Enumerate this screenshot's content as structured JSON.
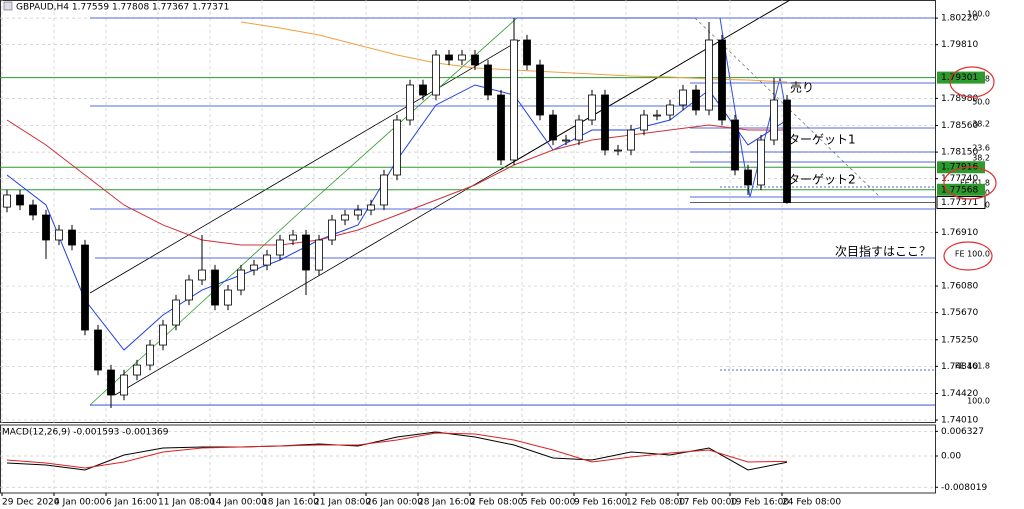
{
  "chart_data": [
    {
      "type": "candlestick",
      "title": "GBPAUD,H4  1.77559 1.77808 1.77367 1.77371",
      "categories": [
        "29 Dec 2020",
        null,
        null,
        null,
        "4 Jan 00:00",
        null,
        null,
        null,
        "6 Jan 16:00",
        null,
        null,
        null,
        "11 Jan 08:00",
        null,
        null,
        null,
        "14 Jan 00:00",
        null,
        null,
        null,
        "18 Jan 16:00",
        null,
        null,
        null,
        "21 Jan 08:00",
        null,
        null,
        null,
        "26 Jan 00:00",
        null,
        null,
        null,
        "28 Jan 16:00",
        null,
        null,
        null,
        "2 Feb 08:00",
        null,
        null,
        null,
        "5 Feb 00:00",
        null,
        null,
        null,
        "9 Feb 16:00",
        null,
        null,
        null,
        "12 Feb 08:00",
        null,
        null,
        null,
        "17 Feb 00:00",
        null,
        null,
        null,
        "19 Feb 16:00",
        null,
        null,
        null,
        "24 Feb 08:00"
      ],
      "open": [
        1.773,
        1.77487,
        1.77333,
        1.77178,
        1.76792,
        1.76946,
        1.76714,
        1.75401,
        1.74783,
        1.74397,
        1.74706,
        1.7486,
        1.75169,
        1.75478,
        1.75865,
        1.76174,
        1.76328,
        1.75787,
        1.76019,
        1.76328,
        1.76405,
        1.7656,
        1.76792,
        1.76869,
        1.76328,
        1.76792,
        1.77101,
        1.77178,
        1.77255,
        1.77333,
        1.77796,
        1.78646,
        1.79187,
        1.79032,
        1.7965,
        1.79573,
        1.7965,
        1.79496,
        1.79032,
        1.78028,
        1.79882,
        1.79496,
        1.78723,
        1.78337,
        1.78337,
        1.78646,
        1.79032,
        1.78182,
        1.78182,
        1.78491,
        1.78723,
        1.78723,
        1.78878,
        1.79109,
        1.788,
        1.79882,
        1.78646,
        1.77873,
        1.77642,
        1.78337,
        1.78955
      ],
      "high": [
        1.77567,
        1.77567,
        1.77413,
        1.77258,
        1.77026,
        1.77026,
        1.76794,
        1.75481,
        1.74863,
        1.74786,
        1.7494,
        1.75249,
        1.75558,
        1.75945,
        1.76254,
        1.76869,
        1.76408,
        1.76099,
        1.76408,
        1.76485,
        1.7664,
        1.76872,
        1.76949,
        1.76949,
        1.76872,
        1.77181,
        1.77258,
        1.77335,
        1.77413,
        1.77876,
        1.78726,
        1.79267,
        1.79267,
        1.7973,
        1.7973,
        1.7973,
        1.7973,
        1.79576,
        1.79112,
        1.80222,
        1.79962,
        1.79576,
        1.78803,
        1.78417,
        1.78726,
        1.79112,
        1.79112,
        1.78262,
        1.78571,
        1.78803,
        1.78803,
        1.78958,
        1.79189,
        1.79189,
        1.8016,
        1.79962,
        1.78726,
        1.77953,
        1.78417,
        1.79295,
        1.79035
      ],
      "low": [
        1.7722,
        1.77253,
        1.77098,
        1.765,
        1.76712,
        1.76634,
        1.75321,
        1.74703,
        1.74196,
        1.74317,
        1.74626,
        1.7478,
        1.75089,
        1.75398,
        1.75785,
        1.76094,
        1.75707,
        1.75707,
        1.75939,
        1.76248,
        1.76325,
        1.7648,
        1.76712,
        1.75942,
        1.76248,
        1.76712,
        1.77021,
        1.77098,
        1.77175,
        1.77253,
        1.77716,
        1.78566,
        1.78952,
        1.78952,
        1.79493,
        1.79493,
        1.79416,
        1.78952,
        1.77951,
        1.77948,
        1.79416,
        1.78643,
        1.78257,
        1.78257,
        1.78257,
        1.78566,
        1.78102,
        1.78102,
        1.78102,
        1.78411,
        1.78643,
        1.78643,
        1.78798,
        1.7872,
        1.7872,
        1.78566,
        1.77793,
        1.77487,
        1.77562,
        1.78257,
        1.7735
      ],
      "close": [
        1.77487,
        1.77333,
        1.77178,
        1.76792,
        1.76946,
        1.76714,
        1.75401,
        1.74783,
        1.74397,
        1.74706,
        1.7486,
        1.75169,
        1.75478,
        1.75865,
        1.76174,
        1.76328,
        1.75787,
        1.76019,
        1.76328,
        1.76405,
        1.7656,
        1.76792,
        1.76869,
        1.76328,
        1.76792,
        1.77101,
        1.77178,
        1.77255,
        1.77333,
        1.77796,
        1.78646,
        1.79187,
        1.79032,
        1.7965,
        1.79573,
        1.7965,
        1.79496,
        1.79032,
        1.78028,
        1.79882,
        1.79496,
        1.78723,
        1.78337,
        1.78337,
        1.78646,
        1.79032,
        1.78182,
        1.78182,
        1.78491,
        1.78723,
        1.78723,
        1.78878,
        1.79109,
        1.788,
        1.79882,
        1.78646,
        1.77873,
        1.77642,
        1.78337,
        1.78955,
        1.77371
      ],
      "up_color": "#ffffff",
      "down_color": "#000000",
      "ylim": [
        1.7398,
        1.805
      ],
      "yticks": [
        {
          "value": 1.8022,
          "label": "1.80220"
        },
        {
          "value": 1.7981,
          "label": "1.79810"
        },
        {
          "value": 1.7898,
          "label": "1.78980"
        },
        {
          "value": 1.7856,
          "label": "1.78560"
        },
        {
          "value": 1.7815,
          "label": "1.78150"
        },
        {
          "value": 1.7774,
          "label": "1.77740"
        },
        {
          "value": 1.7691,
          "label": "1.76910"
        },
        {
          "value": 1.7608,
          "label": "1.76080"
        },
        {
          "value": 1.7567,
          "label": "1.75670"
        },
        {
          "value": 1.7525,
          "label": "1.75250"
        },
        {
          "value": 1.7484,
          "label": "1.74840"
        },
        {
          "value": 1.7442,
          "label": "1.74420"
        },
        {
          "value": 1.7401,
          "label": "1.74010"
        }
      ],
      "grid": true,
      "moving_averages": [
        {
          "color": "#1f3fe0",
          "x": [
            0,
            3,
            6,
            9,
            12,
            15,
            18,
            21,
            24,
            27,
            30,
            33,
            36,
            39,
            42,
            45,
            48,
            51,
            54,
            57,
            60
          ],
          "values": [
            1.77796,
            1.77333,
            1.75865,
            1.75092,
            1.75633,
            1.76019,
            1.76251,
            1.76483,
            1.76792,
            1.77024,
            1.78028,
            1.78878,
            1.79187,
            1.79032,
            1.78182,
            1.78491,
            1.78491,
            1.78646,
            1.79109,
            1.7826,
            1.78646
          ]
        },
        {
          "color": "#d0303a",
          "x": [
            0,
            3,
            6,
            9,
            12,
            15,
            18,
            21,
            24,
            27,
            30,
            33,
            36,
            39,
            42,
            45,
            48,
            51,
            54,
            57,
            60
          ],
          "values": [
            1.78646,
            1.7826,
            1.77796,
            1.77333,
            1.77024,
            1.76792,
            1.76714,
            1.76714,
            1.76792,
            1.76946,
            1.77178,
            1.7741,
            1.77642,
            1.77951,
            1.78182,
            1.78337,
            1.78414,
            1.78491,
            1.78569,
            1.78491,
            1.78491
          ]
        },
        {
          "color": "#f0a040",
          "x": [
            18,
            21,
            24,
            27,
            30,
            33,
            36,
            39,
            42,
            45,
            48,
            51,
            54,
            57,
            60
          ],
          "values": [
            1.8016,
            1.80067,
            1.79959,
            1.79805,
            1.7965,
            1.79527,
            1.79449,
            1.79418,
            1.79387,
            1.79357,
            1.79326,
            1.7931,
            1.79279,
            1.79264,
            1.79233
          ]
        }
      ],
      "levels": [
        {
          "label": "100.0",
          "value": 1.80222
        },
        {
          "label": "61.8",
          "value": 1.79218
        },
        {
          "label": "50.0",
          "value": 1.78862
        },
        {
          "label": "38.2",
          "value": 1.78522
        },
        {
          "label": "23.6",
          "value": 1.78151
        },
        {
          "label": "38.2",
          "value": 1.77997
        },
        {
          "label": "FE 61.8",
          "value": 1.77611
        },
        {
          "label": "0.0",
          "value": 1.77456
        },
        {
          "label": "50.0",
          "value": 1.77271
        },
        {
          "label": "FE 100.0",
          "value": 1.76514
        },
        {
          "label": "FE 161.8",
          "value": 1.74783
        },
        {
          "label": "100.0",
          "value": 1.74242
        }
      ],
      "level_color": "#1e3ad6",
      "hlines": [
        1.79301,
        1.77916,
        1.77568
      ],
      "hline_color": "#2e9a2e",
      "last_price": 1.77371,
      "annotations": [
        "売り",
        "ターゲット1",
        "ターゲット2",
        "次目指すはここ？"
      ],
      "annotation_color": "#e8412c"
    },
    {
      "type": "macd",
      "title": "MACD(12,26,9) -0.001593 -0.001369",
      "series": [
        {
          "color": "#000000",
          "x": [
            0,
            3,
            6,
            9,
            12,
            15,
            18,
            21,
            24,
            27,
            30,
            33,
            36,
            39,
            42,
            45,
            48,
            51,
            54,
            57,
            60
          ],
          "values": [
            -0.00179,
            -0.00231,
            -0.00359,
            0.00026,
            0.00205,
            0.00231,
            0.00231,
            0.00256,
            0.00308,
            0.00256,
            0.00487,
            0.00615,
            0.00487,
            0.00282,
            -0.00051,
            -0.00103,
            0.00103,
            0.00026,
            0.00205,
            -0.00359,
            -0.001593
          ]
        },
        {
          "color": "#e02020",
          "x": [
            0,
            3,
            6,
            9,
            12,
            15,
            18,
            21,
            24,
            27,
            30,
            33,
            36,
            39,
            42,
            45,
            48,
            51,
            54,
            57,
            60
          ],
          "values": [
            -0.00103,
            -0.00179,
            -0.00308,
            -0.00154,
            0.00103,
            0.00205,
            0.00231,
            0.00256,
            0.00282,
            0.00282,
            0.0041,
            0.0059,
            0.00564,
            0.0041,
            0.00154,
            -0.00154,
            -0.00026,
            0.00077,
            0.00154,
            -0.00154,
            -0.001369
          ]
        }
      ],
      "ylim": [
        -0.00949,
        0.00795
      ],
      "yticks": [
        0.006327,
        {
          "value": 0,
          "label": "0.00"
        },
        -0.008019
      ]
    }
  ]
}
